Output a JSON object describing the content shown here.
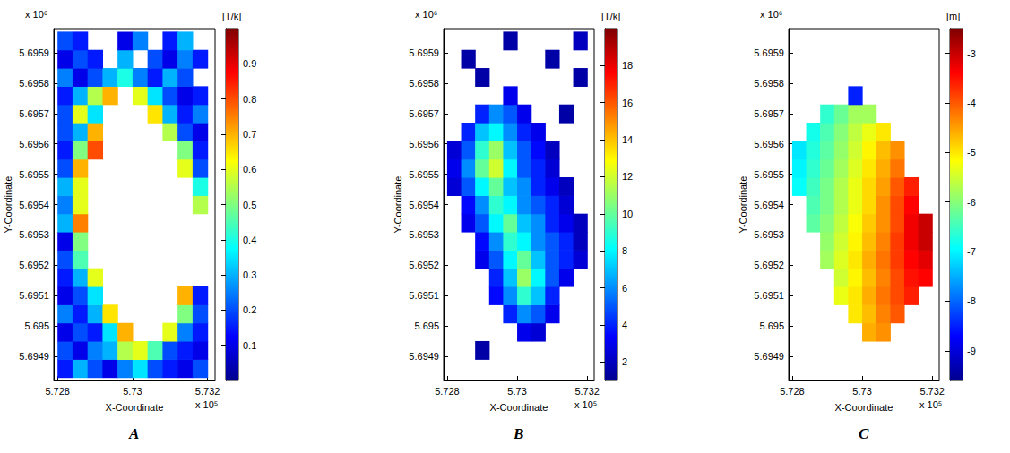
{
  "chart_data": [
    {
      "type": "heatmap",
      "label": "A",
      "xlabel": "X-Coordinate",
      "ylabel": "Y-Coordinate",
      "x_multiplier": "x 10⁵",
      "y_multiplier": "x 10⁶",
      "xlim": [
        5.7279,
        5.7322
      ],
      "xticks": [
        5.728,
        5.73,
        5.732
      ],
      "ylim": [
        5.69482,
        5.69598
      ],
      "yticks": [
        5.6949,
        5.695,
        5.6951,
        5.6952,
        5.6953,
        5.6954,
        5.6955,
        5.6956,
        5.6957,
        5.6958,
        5.6959
      ],
      "colorbar": {
        "label": "[T/k]",
        "lim": [
          0,
          1
        ],
        "ticks": [
          0.1,
          0.2,
          0.3,
          0.4,
          0.5,
          0.6,
          0.7,
          0.8,
          0.9
        ]
      },
      "cells": {
        "x": [
          5.7282,
          5.7286,
          5.729,
          5.7294,
          5.7298,
          5.7302,
          5.7306,
          5.731,
          5.7314,
          5.7318
        ],
        "y": [
          5.69486,
          5.69492,
          5.69498,
          5.69504,
          5.6951,
          5.69516,
          5.69522,
          5.69528,
          5.69534,
          5.6954,
          5.69546,
          5.69552,
          5.69558,
          5.69564,
          5.6957,
          5.69576,
          5.69582,
          5.69588,
          5.69594
        ],
        "values": [
          [
            0.15,
            0.3,
            0.2,
            0.1,
            0.25,
            0.35,
            0.2,
            0.15,
            0.1,
            0.2
          ],
          [
            0.2,
            0.1,
            0.25,
            0.3,
            0.55,
            0.6,
            0.45,
            0.2,
            0.15,
            0.1
          ],
          [
            0.1,
            0.2,
            0.15,
            0.35,
            0.7,
            null,
            null,
            0.6,
            0.25,
            0.15
          ],
          [
            0.25,
            0.15,
            0.3,
            0.65,
            null,
            null,
            null,
            null,
            0.5,
            0.2
          ],
          [
            0.1,
            0.2,
            0.35,
            null,
            null,
            null,
            null,
            null,
            0.7,
            0.15
          ],
          [
            0.15,
            0.3,
            0.6,
            null,
            null,
            null,
            null,
            null,
            null,
            null
          ],
          [
            0.2,
            0.45,
            null,
            null,
            null,
            null,
            null,
            null,
            null,
            null
          ],
          [
            0.1,
            0.5,
            null,
            null,
            null,
            null,
            null,
            null,
            null,
            null
          ],
          [
            0.3,
            0.75,
            null,
            null,
            null,
            null,
            null,
            null,
            null,
            null
          ],
          [
            0.25,
            0.6,
            null,
            null,
            null,
            null,
            null,
            null,
            null,
            0.55
          ],
          [
            0.3,
            0.6,
            null,
            null,
            null,
            null,
            null,
            null,
            null,
            0.4
          ],
          [
            0.2,
            0.7,
            null,
            null,
            null,
            null,
            null,
            null,
            0.6,
            0.2
          ],
          [
            0.15,
            0.5,
            0.8,
            null,
            null,
            null,
            null,
            null,
            0.5,
            0.15
          ],
          [
            0.2,
            0.3,
            0.7,
            null,
            null,
            null,
            null,
            0.55,
            0.2,
            0.1
          ],
          [
            0.2,
            0.6,
            0.35,
            null,
            null,
            null,
            0.65,
            0.3,
            0.15,
            0.25
          ],
          [
            0.15,
            0.3,
            0.55,
            0.7,
            null,
            0.6,
            0.35,
            0.2,
            0.1,
            0.15
          ],
          [
            0.25,
            0.1,
            0.2,
            0.3,
            0.4,
            0.25,
            0.15,
            0.3,
            0.2,
            null
          ],
          [
            0.1,
            0.2,
            0.15,
            null,
            0.3,
            null,
            0.2,
            0.1,
            0.25,
            0.15
          ],
          [
            0.2,
            0.15,
            null,
            null,
            0.1,
            0.25,
            null,
            0.15,
            0.3,
            null
          ]
        ]
      }
    },
    {
      "type": "heatmap",
      "label": "B",
      "xlabel": "X-Coordinate",
      "ylabel": "Y-Coordinate",
      "x_multiplier": "x 10⁵",
      "y_multiplier": "x 10⁶",
      "xlim": [
        5.7279,
        5.7322
      ],
      "xticks": [
        5.728,
        5.73,
        5.732
      ],
      "ylim": [
        5.69482,
        5.69598
      ],
      "yticks": [
        5.6949,
        5.695,
        5.6951,
        5.6952,
        5.6953,
        5.6954,
        5.6955,
        5.6956,
        5.6957,
        5.6958,
        5.6959
      ],
      "colorbar": {
        "label": "[T/k]",
        "lim": [
          1,
          20
        ],
        "ticks": [
          2,
          4,
          6,
          8,
          10,
          12,
          14,
          16,
          18
        ]
      },
      "cells": {
        "x": [
          5.7282,
          5.7286,
          5.729,
          5.7294,
          5.7298,
          5.7302,
          5.7306,
          5.731,
          5.7314,
          5.7318
        ],
        "y": [
          5.69486,
          5.69492,
          5.69498,
          5.69504,
          5.6951,
          5.69516,
          5.69522,
          5.69528,
          5.69534,
          5.6954,
          5.69546,
          5.69552,
          5.69558,
          5.69564,
          5.6957,
          5.69576,
          5.69582,
          5.69588,
          5.69594
        ],
        "values": [
          [
            null,
            null,
            null,
            null,
            null,
            null,
            null,
            null,
            null,
            null
          ],
          [
            null,
            null,
            1.5,
            null,
            null,
            null,
            null,
            null,
            null,
            null
          ],
          [
            null,
            null,
            null,
            null,
            null,
            3,
            2.5,
            null,
            null,
            null
          ],
          [
            null,
            null,
            null,
            null,
            4,
            6,
            5,
            3,
            null,
            null
          ],
          [
            null,
            null,
            null,
            3.5,
            6,
            9,
            7,
            4,
            null,
            null
          ],
          [
            null,
            null,
            null,
            4,
            7,
            11,
            8,
            5,
            3,
            null
          ],
          [
            null,
            null,
            3,
            5,
            8,
            10,
            7,
            5,
            4,
            2.5
          ],
          [
            null,
            null,
            3.5,
            6,
            9,
            8,
            6,
            5,
            4,
            2
          ],
          [
            null,
            3,
            5,
            8,
            10,
            7,
            6,
            4,
            3,
            2
          ],
          [
            null,
            3.5,
            6,
            9,
            8,
            6,
            5,
            4,
            2.5,
            null
          ],
          [
            2.5,
            5,
            8,
            10,
            7,
            6,
            4,
            3,
            2,
            null
          ],
          [
            3,
            6,
            10,
            12,
            8,
            5,
            4,
            2.5,
            null,
            null
          ],
          [
            2.5,
            5,
            9,
            11,
            7,
            5,
            3.5,
            2,
            null,
            null
          ],
          [
            null,
            4,
            7,
            8,
            6,
            4,
            3,
            null,
            null,
            null
          ],
          [
            null,
            null,
            4,
            6,
            5,
            3,
            null,
            null,
            1.5,
            null
          ],
          [
            null,
            null,
            null,
            null,
            3,
            null,
            null,
            null,
            null,
            null
          ],
          [
            null,
            null,
            1.5,
            null,
            null,
            null,
            null,
            null,
            null,
            1.5
          ],
          [
            null,
            1.5,
            null,
            null,
            null,
            null,
            null,
            1.5,
            null,
            null
          ],
          [
            null,
            null,
            null,
            null,
            1.5,
            null,
            null,
            null,
            null,
            2
          ]
        ]
      }
    },
    {
      "type": "heatmap",
      "label": "C",
      "xlabel": "X-Coordinate",
      "ylabel": "Y-Coordinate",
      "x_multiplier": "x 10⁵",
      "y_multiplier": "x 10⁶",
      "xlim": [
        5.7279,
        5.7322
      ],
      "xticks": [
        5.728,
        5.73,
        5.732
      ],
      "ylim": [
        5.69482,
        5.69598
      ],
      "yticks": [
        5.6949,
        5.695,
        5.6951,
        5.6952,
        5.6953,
        5.6954,
        5.6955,
        5.6956,
        5.6957,
        5.6958,
        5.6959
      ],
      "colorbar": {
        "label": "[m]",
        "lim": [
          -9.6,
          -2.5
        ],
        "ticks": [
          -9,
          -8,
          -7,
          -6,
          -5,
          -4,
          -3
        ]
      },
      "cells": {
        "x": [
          5.7282,
          5.7286,
          5.729,
          5.7294,
          5.7298,
          5.7302,
          5.7306,
          5.731,
          5.7314,
          5.7318
        ],
        "y": [
          5.69486,
          5.69492,
          5.69498,
          5.69504,
          5.6951,
          5.69516,
          5.69522,
          5.69528,
          5.69534,
          5.6954,
          5.69546,
          5.69552,
          5.69558,
          5.69564,
          5.6957,
          5.69576,
          5.69582,
          5.69588,
          5.69594
        ],
        "values": [
          [
            null,
            null,
            null,
            null,
            null,
            null,
            null,
            null,
            null,
            null
          ],
          [
            null,
            null,
            null,
            null,
            null,
            null,
            null,
            null,
            null,
            null
          ],
          [
            null,
            null,
            null,
            null,
            null,
            -4.6,
            -4.4,
            null,
            null,
            null
          ],
          [
            null,
            null,
            null,
            null,
            -5,
            -4.7,
            -4.3,
            -4,
            null,
            null
          ],
          [
            null,
            null,
            null,
            -5.3,
            -5,
            -4.6,
            -4.2,
            -3.9,
            -3.6,
            null
          ],
          [
            null,
            null,
            null,
            -5.5,
            -5.1,
            -4.7,
            -4.3,
            -3.9,
            -3.5,
            -3.4
          ],
          [
            null,
            null,
            -5.8,
            -5.4,
            -5,
            -4.6,
            -4.2,
            -3.8,
            -3.4,
            -3.2
          ],
          [
            null,
            null,
            -5.9,
            -5.5,
            -5.1,
            -4.7,
            -4.3,
            -3.8,
            -3.3,
            -3
          ],
          [
            null,
            -6.3,
            -6,
            -5.6,
            -5.2,
            -4.8,
            -4.4,
            -3.9,
            -3.3,
            -3
          ],
          [
            null,
            -6.4,
            -6.1,
            -5.7,
            -5.3,
            -4.9,
            -4.4,
            -3.9,
            -3.4,
            null
          ],
          [
            -6.9,
            -6.5,
            -6.1,
            -5.7,
            -5.3,
            -4.9,
            -4.5,
            -4,
            -3.6,
            null
          ],
          [
            -7,
            -6.6,
            -6.2,
            -5.8,
            -5.4,
            -5,
            -4.6,
            -4.2,
            null,
            null
          ],
          [
            -7.1,
            -6.7,
            -6.3,
            -5.9,
            -5.5,
            -5.1,
            -4.7,
            -4.4,
            null,
            null
          ],
          [
            null,
            -6.8,
            -6.4,
            -6,
            -5.6,
            -5.3,
            -5,
            null,
            null,
            null
          ],
          [
            null,
            null,
            -6.6,
            -6.2,
            -5.8,
            -5.8,
            null,
            null,
            null,
            null
          ],
          [
            null,
            null,
            null,
            null,
            -8.5,
            null,
            null,
            null,
            null,
            null
          ],
          [
            null,
            null,
            null,
            null,
            null,
            null,
            null,
            null,
            null,
            null
          ],
          [
            null,
            null,
            null,
            null,
            null,
            null,
            null,
            null,
            null,
            null
          ],
          [
            null,
            null,
            null,
            null,
            null,
            null,
            null,
            null,
            null,
            null
          ]
        ]
      }
    }
  ]
}
